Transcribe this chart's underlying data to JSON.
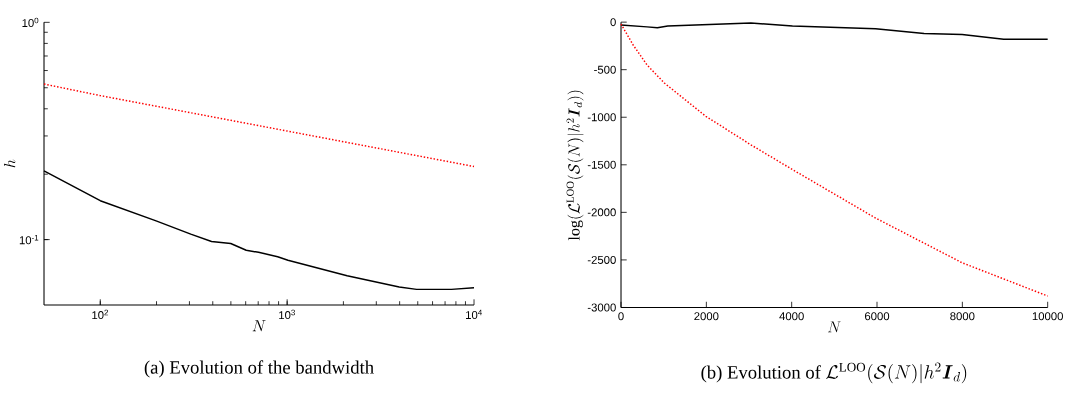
{
  "chart_data": [
    {
      "type": "line",
      "title": "\\text{(a) Evolution of the bandwidth}",
      "xlabel": "N",
      "ylabel": "h",
      "log": "xy",
      "xlim": [
        50,
        10000
      ],
      "ylim": [
        0.05,
        1
      ],
      "xticks": [
        {
          "value": 100,
          "label": "10$^{2}$"
        },
        {
          "value": 1000,
          "label": "10$^{3}$"
        },
        {
          "value": 10000,
          "label": "10$^{4}$"
        }
      ],
      "yticks": [
        {
          "value": 0.1,
          "label": "10$^{-1}$"
        },
        {
          "value": 1,
          "label": "10$^{0}$"
        }
      ],
      "series": [
        {
          "color": "#000000",
          "line_style": "solid",
          "x": [
            50,
            100,
            199,
            305,
            394,
            499,
            604,
            703,
            890,
            1010,
            2094,
            3980,
            4930,
            7570,
            10000
          ],
          "values": [
            0.207,
            0.151,
            0.122,
            0.106,
            0.098,
            0.096,
            0.0893,
            0.0874,
            0.0834,
            0.0804,
            0.0682,
            0.0605,
            0.059,
            0.059,
            0.06
          ]
        },
        {
          "color": "#ff0000",
          "line_style": "dotted",
          "x": [
            50,
            100,
            1000,
            10000
          ],
          "values": [
            0.52,
            0.46,
            0.316,
            0.217
          ]
        }
      ]
    },
    {
      "type": "line",
      "title": "\\text{(b) Evolution of }\\mathcal{L}^{\\mathrm{LOO}}(\\mathcal{S}(N)|h^2\\boldsymbol{I}_d)",
      "xlabel": "N",
      "ylabel": "\\log(\\mathcal{L}^{\\mathrm{LOO}}(\\mathcal{S}(N)|h^2\\boldsymbol{I}_d))",
      "xlim": [
        0,
        10000
      ],
      "ylim": [
        -3000,
        0
      ],
      "xticks": [
        0,
        2000,
        4000,
        6000,
        8000,
        10000
      ],
      "yticks": [
        -3000,
        -2500,
        -2000,
        -1500,
        -1000,
        -500,
        0
      ],
      "series": [
        {
          "color": "#000000",
          "line_style": "solid",
          "x": [
            0,
            609,
            852,
            1096,
            3044,
            4018,
            5966,
            7103,
            7995,
            8969,
            10000
          ],
          "values": [
            -30,
            -50,
            -60,
            -40,
            -10,
            -40,
            -70,
            -120,
            -130,
            -180,
            -180
          ]
        },
        {
          "color": "#ff0000",
          "line_style": "dotted",
          "x": [
            0,
            284,
            609,
            1015,
            1989,
            3044,
            4018,
            5966,
            7995,
            10000
          ],
          "values": [
            -20,
            -240,
            -450,
            -640,
            -990,
            -1290,
            -1550,
            -2060,
            -2530,
            -2880
          ]
        }
      ]
    }
  ]
}
